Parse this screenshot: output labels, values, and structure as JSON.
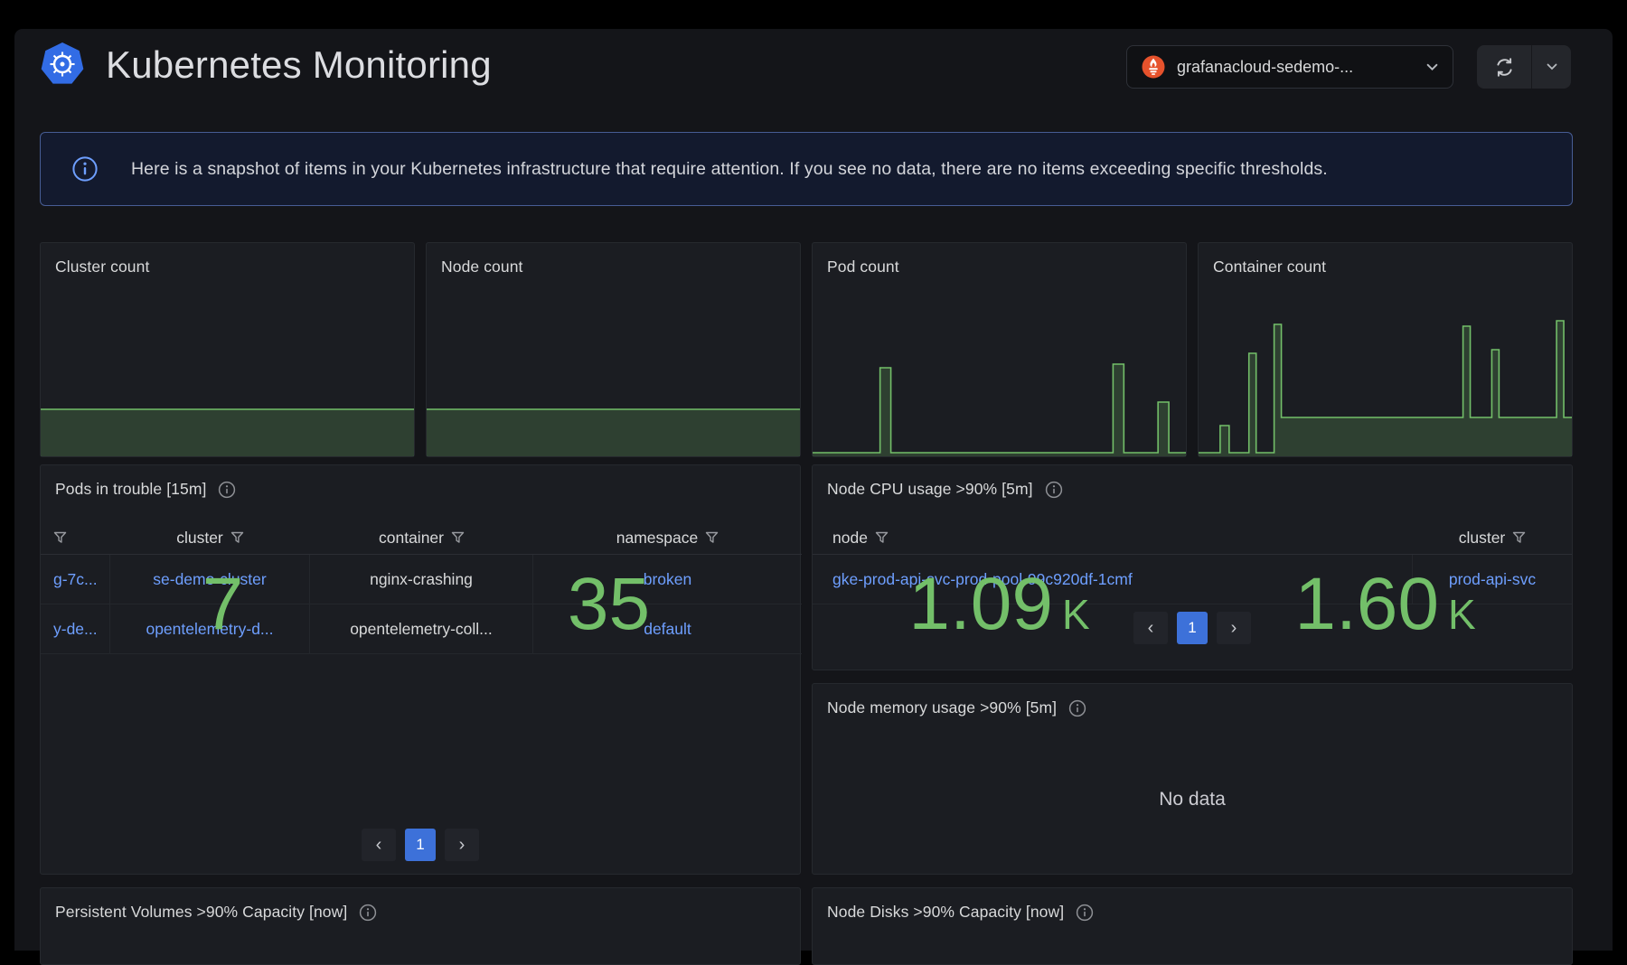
{
  "header": {
    "title": "Kubernetes Monitoring",
    "logo_icon": "kubernetes-logo",
    "datasource_picker": {
      "icon": "prometheus-icon",
      "value": "grafanacloud-sedemo-..."
    },
    "refresh": {
      "icon": "refresh-icon",
      "caret_icon": "chevron-down-icon"
    }
  },
  "banner": {
    "icon": "info-circle-icon",
    "text": "Here is a snapshot of items in your Kubernetes infrastructure that require attention. If you see no data, there are no items exceeding specific thresholds."
  },
  "colors": {
    "green": "#73bf69",
    "spark_fill": "rgba(115,191,105,0.22)",
    "link_blue": "#6e9fff",
    "pagination_active_blue": "#3d71d9",
    "kubernetes_blue": "#326ce5",
    "prometheus_orange": "#e6522c",
    "banner_border": "#475d94",
    "panel_bg": "#1b1d22"
  },
  "stats": [
    {
      "title": "Cluster count",
      "value": "7",
      "unit": "",
      "spark": {
        "points": [
          [
            0,
            100
          ],
          [
            415,
            100
          ]
        ]
      }
    },
    {
      "title": "Node count",
      "value": "35",
      "unit": "",
      "spark": {
        "points": [
          [
            0,
            100
          ],
          [
            415,
            100
          ]
        ]
      }
    },
    {
      "title": "Pod count",
      "value": "1.09",
      "unit": "K",
      "spark": {
        "points": [
          [
            0,
            148
          ],
          [
            75,
            148
          ],
          [
            75,
            54
          ],
          [
            87,
            54
          ],
          [
            87,
            148
          ],
          [
            334,
            148
          ],
          [
            334,
            50
          ],
          [
            346,
            50
          ],
          [
            346,
            148
          ],
          [
            384,
            148
          ],
          [
            384,
            92
          ],
          [
            396,
            92
          ],
          [
            396,
            148
          ],
          [
            415,
            148
          ]
        ]
      }
    },
    {
      "title": "Container count",
      "value": "1.60",
      "unit": "K",
      "spark": {
        "points": [
          [
            0,
            148
          ],
          [
            24,
            148
          ],
          [
            24,
            118
          ],
          [
            34,
            118
          ],
          [
            34,
            148
          ],
          [
            56,
            148
          ],
          [
            56,
            38
          ],
          [
            64,
            38
          ],
          [
            64,
            148
          ],
          [
            84,
            148
          ],
          [
            84,
            6
          ],
          [
            92,
            6
          ],
          [
            92,
            109
          ],
          [
            294,
            109
          ],
          [
            294,
            8
          ],
          [
            302,
            8
          ],
          [
            302,
            109
          ],
          [
            326,
            109
          ],
          [
            326,
            34
          ],
          [
            334,
            34
          ],
          [
            334,
            109
          ],
          [
            398,
            109
          ],
          [
            398,
            2
          ],
          [
            406,
            2
          ],
          [
            406,
            109
          ],
          [
            415,
            109
          ]
        ]
      }
    }
  ],
  "pods_panel": {
    "title": "Pods in trouble [15m]",
    "columns": [
      {
        "label": ""
      },
      {
        "label": "cluster"
      },
      {
        "label": "container"
      },
      {
        "label": "namespace"
      }
    ],
    "rows": [
      [
        "g-7c...",
        "se-demo-cluster",
        "nginx-crashing",
        "broken"
      ],
      [
        "y-de...",
        "opentelemetry-d...",
        "opentelemetry-coll...",
        "default"
      ]
    ],
    "pagination": {
      "prev": "‹",
      "page": "1",
      "next": "›"
    }
  },
  "node_cpu_panel": {
    "title": "Node CPU usage >90% [5m]",
    "columns": [
      {
        "label": "node"
      },
      {
        "label": "cluster"
      }
    ],
    "rows": [
      [
        "gke-prod-api-svc-prod-pool-99c920df-1cmf",
        "prod-api-svc"
      ]
    ],
    "pagination": {
      "prev": "‹",
      "page": "1",
      "next": "›"
    }
  },
  "node_memory_panel": {
    "title": "Node memory usage >90% [5m]",
    "message": "No data"
  },
  "bottom_panels": [
    {
      "title": "Persistent Volumes >90% Capacity [now]"
    },
    {
      "title": "Node Disks >90% Capacity [now]"
    }
  ]
}
